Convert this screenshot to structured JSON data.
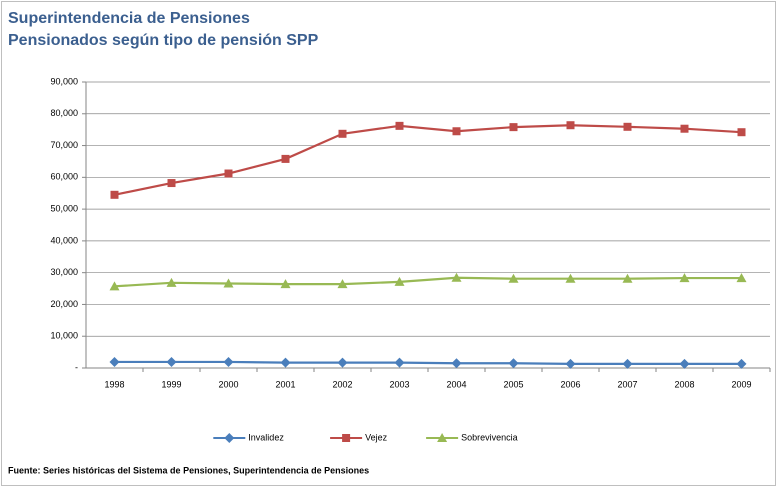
{
  "chart_data": {
    "type": "line",
    "title": "Superintendencia de Pensiones",
    "subtitle": "Pensionados según tipo de pensión SPP",
    "source": "Fuente:  Series históricas del Sistema de Pensiones, Superintendencia de Pensiones",
    "categories": [
      "1998",
      "1999",
      "2000",
      "2001",
      "2002",
      "2003",
      "2004",
      "2005",
      "2006",
      "2007",
      "2008",
      "2009"
    ],
    "series": [
      {
        "name": "Invalidez",
        "color": "#4a7ebb",
        "marker": "diamond",
        "values": [
          1900,
          1900,
          1900,
          1700,
          1700,
          1700,
          1500,
          1500,
          1300,
          1300,
          1300,
          1300
        ]
      },
      {
        "name": "Vejez",
        "color": "#be4b48",
        "marker": "square",
        "values": [
          54500,
          58200,
          61200,
          65800,
          73700,
          76200,
          74500,
          75800,
          76400,
          75900,
          75300,
          74200
        ]
      },
      {
        "name": "Sobrevivencia",
        "color": "#98b954",
        "marker": "triangle",
        "values": [
          25700,
          26800,
          26600,
          26400,
          26400,
          27100,
          28400,
          28100,
          28100,
          28100,
          28300,
          28300
        ]
      }
    ],
    "ylim": [
      0,
      90000
    ],
    "yticks": [
      {
        "value": 0,
        "label": "-"
      },
      {
        "value": 10000,
        "label": "10,000"
      },
      {
        "value": 20000,
        "label": "20,000"
      },
      {
        "value": 30000,
        "label": "30,000"
      },
      {
        "value": 40000,
        "label": "40,000"
      },
      {
        "value": 50000,
        "label": "50,000"
      },
      {
        "value": 60000,
        "label": "60,000"
      },
      {
        "value": 70000,
        "label": "70,000"
      },
      {
        "value": 80000,
        "label": "80,000"
      },
      {
        "value": 90000,
        "label": "90,000"
      }
    ],
    "grid": true,
    "legend": "bottom"
  }
}
